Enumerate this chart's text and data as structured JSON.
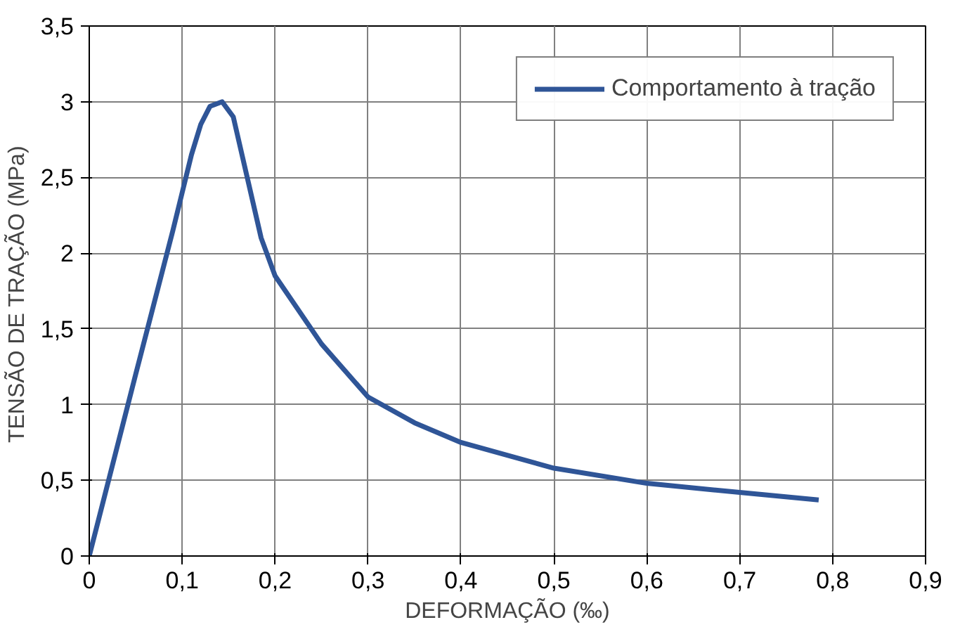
{
  "chart_data": {
    "type": "line",
    "xlabel": "DEFORMAÇÃO (‰)",
    "ylabel": "TENSÃO  DE TRAÇÃO (MPa)",
    "x": [
      0,
      0.05,
      0.09,
      0.1,
      0.11,
      0.12,
      0.13,
      0.143,
      0.155,
      0.17,
      0.185,
      0.2,
      0.25,
      0.3,
      0.35,
      0.4,
      0.5,
      0.6,
      0.7,
      0.785
    ],
    "series": [
      {
        "name": "Comportamento à tração",
        "color": "#2f5597",
        "values": [
          0,
          1.2,
          2.15,
          2.4,
          2.65,
          2.85,
          2.97,
          3.0,
          2.9,
          2.5,
          2.1,
          1.85,
          1.4,
          1.05,
          0.88,
          0.75,
          0.58,
          0.48,
          0.42,
          0.37
        ]
      }
    ],
    "xlim": [
      0,
      0.9
    ],
    "xticks": [
      {
        "value": 0,
        "label": "0"
      },
      {
        "value": 0.1,
        "label": "0,1"
      },
      {
        "value": 0.2,
        "label": "0,2"
      },
      {
        "value": 0.3,
        "label": "0,3"
      },
      {
        "value": 0.4,
        "label": "0,4"
      },
      {
        "value": 0.5,
        "label": "0,5"
      },
      {
        "value": 0.6,
        "label": "0,6"
      },
      {
        "value": 0.7,
        "label": "0,7"
      },
      {
        "value": 0.8,
        "label": "0,8"
      },
      {
        "value": 0.9,
        "label": "0,9"
      }
    ],
    "ylim": [
      0,
      3.5
    ],
    "yticks": [
      0,
      {
        "value": 0.5,
        "label": "0,5"
      },
      1,
      {
        "value": 1.5,
        "label": "1,5"
      },
      2,
      {
        "value": 2.5,
        "label": "2,5"
      },
      3,
      {
        "value": 3.5,
        "label": "3,5"
      }
    ],
    "grid": true,
    "legend": "top right",
    "marker": "none",
    "line_style": "solid"
  }
}
